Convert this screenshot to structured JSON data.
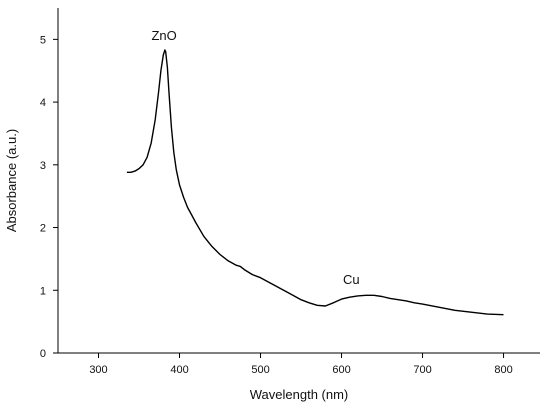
{
  "chart_data": {
    "type": "line",
    "title": "",
    "xlabel": "Wavelength (nm)",
    "ylabel": "Absorbance (a.u.)",
    "xlim": [
      250,
      845
    ],
    "ylim": [
      0,
      5.5
    ],
    "x_ticks": [
      300,
      400,
      500,
      600,
      700,
      800
    ],
    "y_ticks": [
      0,
      1,
      2,
      3,
      4,
      5
    ],
    "grid": false,
    "legend": "none",
    "series": [
      {
        "color": "#000000",
        "x": [
          335,
          340,
          345,
          350,
          355,
          360,
          365,
          370,
          374,
          377,
          380,
          382,
          383,
          385,
          387,
          390,
          393,
          396,
          400,
          405,
          410,
          415,
          420,
          430,
          440,
          450,
          460,
          470,
          475,
          480,
          490,
          500,
          510,
          520,
          530,
          540,
          550,
          560,
          570,
          580,
          590,
          600,
          610,
          620,
          630,
          640,
          650,
          660,
          670,
          680,
          690,
          700,
          720,
          740,
          760,
          780,
          800
        ],
        "y": [
          2.88,
          2.88,
          2.9,
          2.94,
          3.0,
          3.12,
          3.35,
          3.72,
          4.15,
          4.5,
          4.75,
          4.83,
          4.8,
          4.55,
          4.15,
          3.6,
          3.2,
          2.92,
          2.68,
          2.48,
          2.32,
          2.2,
          2.08,
          1.86,
          1.7,
          1.57,
          1.47,
          1.4,
          1.38,
          1.33,
          1.25,
          1.2,
          1.13,
          1.06,
          0.99,
          0.92,
          0.85,
          0.8,
          0.76,
          0.75,
          0.8,
          0.86,
          0.89,
          0.91,
          0.92,
          0.92,
          0.9,
          0.87,
          0.85,
          0.83,
          0.8,
          0.78,
          0.73,
          0.68,
          0.65,
          0.62,
          0.61
        ]
      }
    ],
    "annotations": [
      {
        "text": "ZnO",
        "x": 381,
        "y": 4.99
      },
      {
        "text": "Cu",
        "x": 612,
        "y": 1.1
      }
    ]
  }
}
